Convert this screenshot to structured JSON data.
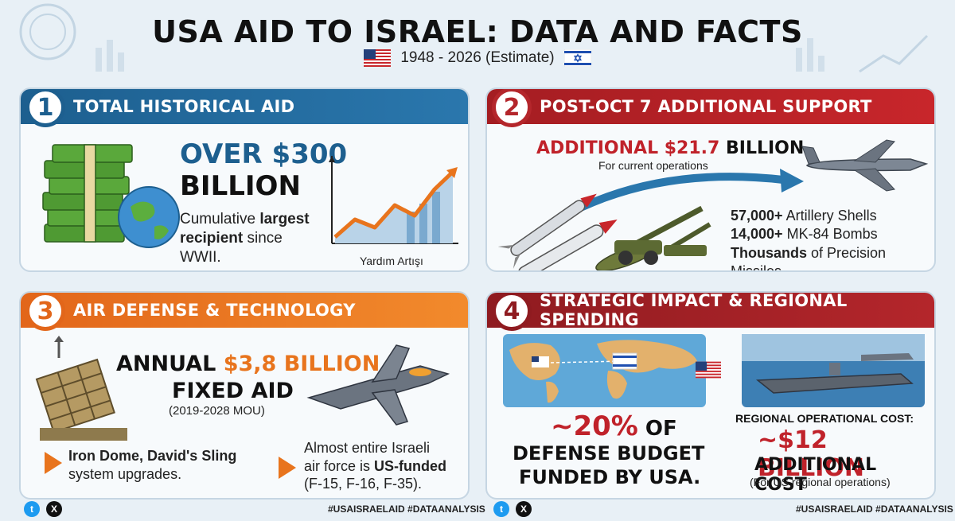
{
  "title": "USA AID TO ISRAEL: DATA AND FACTS",
  "subtitle": "1948 - 2026 (Estimate)",
  "colors": {
    "blue": "#1d5f8f",
    "red": "#b4262b",
    "orange": "#e2661a",
    "maroon": "#8f1b20"
  },
  "panel1": {
    "number": "1",
    "heading": "TOTAL HISTORICAL AID",
    "amount_line1": "OVER $300",
    "amount_line2": "BILLION",
    "desc_normal1": "Cumulative ",
    "desc_bold1": "largest",
    "desc_bold2": "recipient",
    "desc_normal2": " since WWII.",
    "chart_label": "Yardım Artışı",
    "icons": [
      "money-stack-icon",
      "globe-icon",
      "growth-chart-icon"
    ]
  },
  "panel2": {
    "number": "2",
    "heading": "POST-OCT 7 ADDITIONAL SUPPORT",
    "amount_prefix": "ADDITIONAL ",
    "amount_value": "$21.7",
    "amount_suffix": " BILLION",
    "amount_note": "For current operations",
    "facts": [
      {
        "bold": "57,000+",
        "rest": " Artillery Shells"
      },
      {
        "bold": "14,000+",
        "rest": " MK-84 Bombs"
      },
      {
        "bold": "Thousands",
        "rest": " of Precision Missiles."
      }
    ],
    "icons": [
      "missile-icon",
      "artillery-icon",
      "cargo-plane-icon"
    ]
  },
  "panel3": {
    "number": "3",
    "heading": "AIR DEFENSE & TECHNOLOGY",
    "annual_prefix": "ANNUAL ",
    "annual_value": "$3,8 BILLION",
    "annual_line2": "FIXED AID",
    "annual_note": "(2019-2028 MOU)",
    "item1_bold": "Iron Dome, David's Sling",
    "item1_rest": "system upgrades.",
    "item2_line1": "Almost entire Israeli",
    "item2_line2_normal": "air force is ",
    "item2_line2_bold": "US-funded",
    "item2_line3": "(F-15, F-16, F-35).",
    "icons": [
      "iron-dome-launcher-icon",
      "fighter-jet-icon"
    ]
  },
  "panel4": {
    "number": "4",
    "heading": "STRATEGIC IMPACT & REGIONAL SPENDING",
    "percent": "~20%",
    "percent_of": " OF",
    "percent_line2": "DEFENSE BUDGET",
    "percent_line3": "FUNDED BY USA.",
    "regional_label": "REGIONAL OPERATIONAL COST:",
    "regional_value": "~$12 BILLION",
    "regional_line2": "ADDITIONAL COST",
    "regional_note": "(For US regional operations)",
    "icons": [
      "world-map-icon",
      "aircraft-carrier-icon",
      "us-flag-icon"
    ]
  },
  "footer": {
    "hashtags": "#USAISRAELAID #DATAANALYSIS"
  }
}
